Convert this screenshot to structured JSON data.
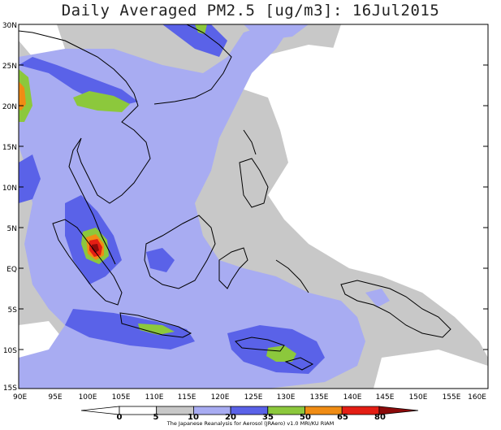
{
  "title": "Daily Averaged PM2.5 [ug/m3]: 16Jul2015",
  "credit": "The Japanese Reanalysis for Aerosol (JRAero) v1.0 MRI/KU RIAM",
  "y_ticks": [
    "30N",
    "25N",
    "20N",
    "15N",
    "10N",
    "5N",
    "EQ",
    "5S",
    "10S",
    "15S"
  ],
  "x_ticks": [
    "90E",
    "95E",
    "100E",
    "105E",
    "110E",
    "115E",
    "120E",
    "125E",
    "130E",
    "135E",
    "140E",
    "145E",
    "150E",
    "155E",
    "160E"
  ],
  "colorbar": {
    "labels": [
      "0",
      "5",
      "10",
      "20",
      "35",
      "50",
      "65",
      "80"
    ],
    "colors": [
      "#ffffff",
      "#ffffff",
      "#c8c8c8",
      "#a8acf2",
      "#5a62e8",
      "#8cc83c",
      "#f08c14",
      "#e41e14",
      "#8c0a0a"
    ]
  }
}
